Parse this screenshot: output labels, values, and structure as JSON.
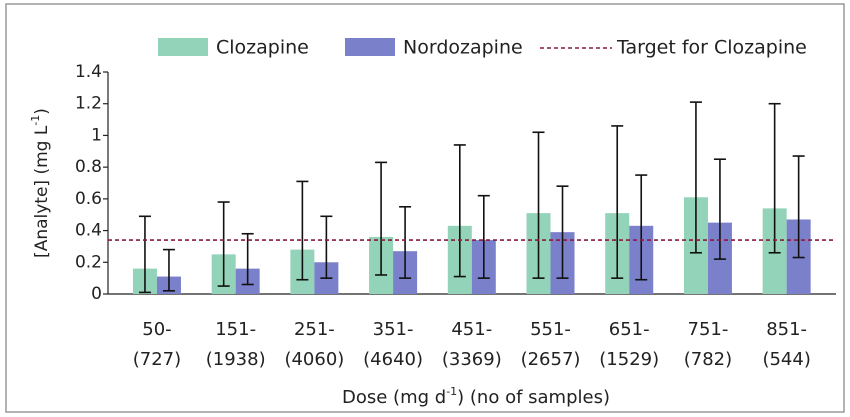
{
  "chart_data": {
    "type": "bar",
    "categories": [
      [
        "50-",
        "(727)"
      ],
      [
        "151-",
        "(1938)"
      ],
      [
        "251-",
        "(4060)"
      ],
      [
        "351-",
        "(4640)"
      ],
      [
        "451-",
        "(3369)"
      ],
      [
        "551-",
        "(2657)"
      ],
      [
        "651-",
        "(1529)"
      ],
      [
        "751-",
        "(782)"
      ],
      [
        "851-",
        "(544)"
      ]
    ],
    "series": [
      {
        "name": "Clozapine",
        "color": "#93d3b9",
        "values": [
          0.16,
          0.25,
          0.28,
          0.36,
          0.43,
          0.51,
          0.51,
          0.61,
          0.54
        ],
        "lower": [
          0.01,
          0.05,
          0.09,
          0.12,
          0.11,
          0.1,
          0.1,
          0.26,
          0.26
        ],
        "upper": [
          0.49,
          0.58,
          0.71,
          0.83,
          0.94,
          1.02,
          1.06,
          1.21,
          1.2
        ]
      },
      {
        "name": "Nordozapine",
        "color": "#7b80cb",
        "values": [
          0.11,
          0.16,
          0.2,
          0.27,
          0.34,
          0.39,
          0.43,
          0.45,
          0.47
        ],
        "lower": [
          0.02,
          0.06,
          0.1,
          0.1,
          0.1,
          0.1,
          0.09,
          0.22,
          0.23
        ],
        "upper": [
          0.28,
          0.38,
          0.49,
          0.55,
          0.62,
          0.68,
          0.75,
          0.85,
          0.87
        ]
      }
    ],
    "target": {
      "name": "Target for Clozapine",
      "value": 0.34,
      "color": "#8b1a3c"
    },
    "y_label": [
      "[Analyte] (mg L",
      "-1",
      ")"
    ],
    "x_label": [
      "Dose (mg d",
      "-1",
      ") (no of samples)"
    ],
    "ylim": [
      0,
      1.4
    ],
    "yticks": [
      0,
      0.2,
      0.4,
      0.6,
      0.8,
      1,
      1.2,
      1.4
    ]
  }
}
